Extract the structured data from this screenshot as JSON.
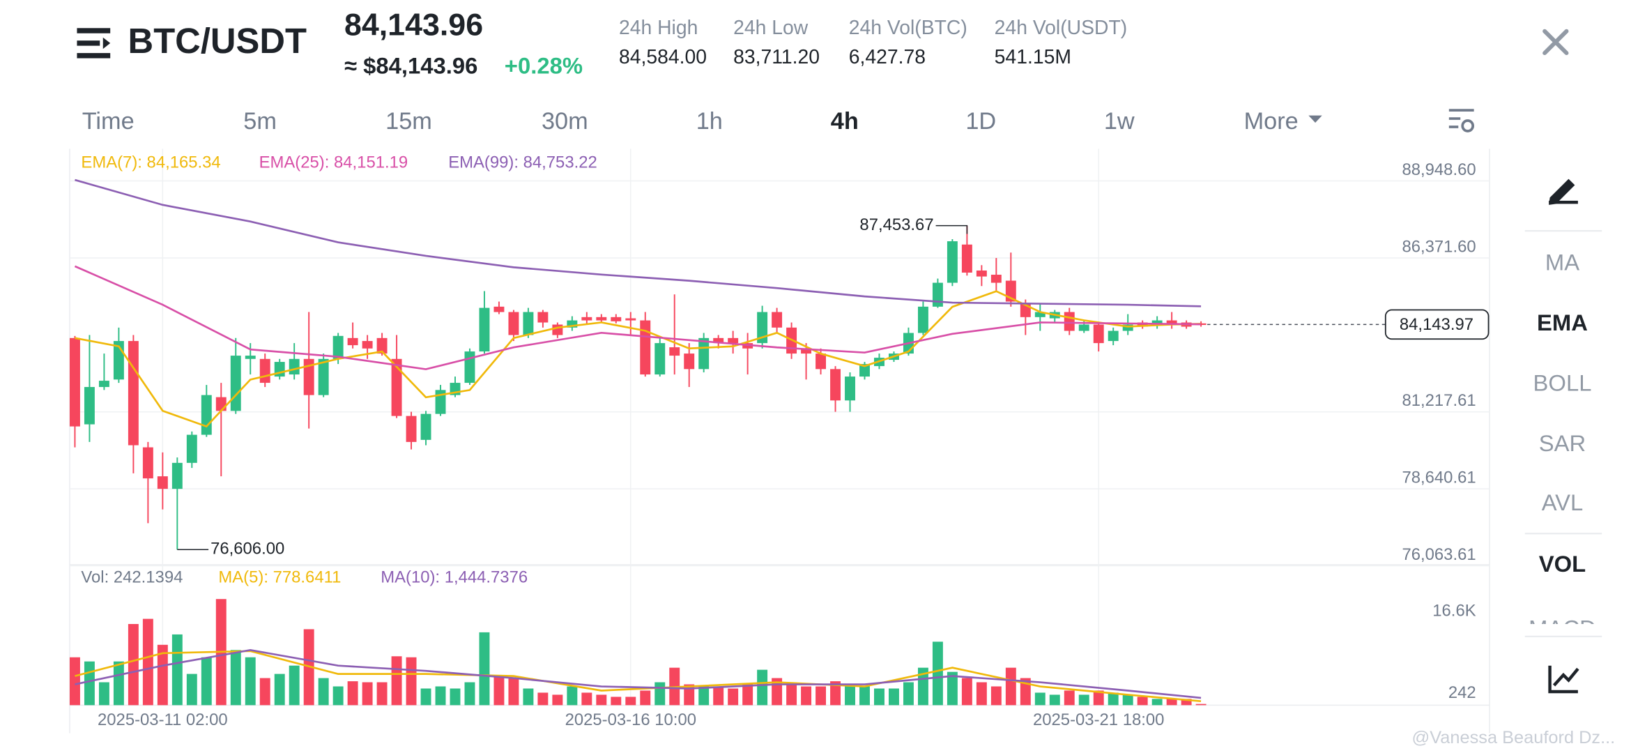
{
  "header": {
    "pair": "BTC/USDT",
    "price": "84,143.96",
    "usd_price": "≈ $84,143.96",
    "change": "+0.28%",
    "stats": [
      {
        "label": "24h High",
        "value": "84,584.00"
      },
      {
        "label": "24h Low",
        "value": "83,711.20"
      },
      {
        "label": "24h Vol(BTC)",
        "value": "6,427.78"
      },
      {
        "label": "24h Vol(USDT)",
        "value": "541.15M"
      }
    ]
  },
  "tabs": {
    "items": [
      "Time",
      "5m",
      "15m",
      "30m",
      "1h",
      "4h",
      "1D",
      "1w",
      "More"
    ],
    "active": "4h"
  },
  "side_menu": {
    "items": [
      "MA",
      "EMA",
      "BOLL",
      "SAR",
      "AVL",
      "VOL",
      "MACD"
    ],
    "active": [
      "EMA",
      "VOL"
    ]
  },
  "watermark": "@Vanessa Beauford Dz...",
  "chart_data": [
    {
      "type": "candlestick",
      "up_color": "#2ebd85",
      "down_color": "#f6465d",
      "open": [
        83690,
        80800,
        82050,
        82300,
        83590,
        80030,
        79060,
        78640,
        79510,
        80450,
        81710,
        81250,
        82990,
        82990,
        82400,
        82470,
        82990,
        81780,
        82990,
        83690,
        83590,
        83690,
        82990,
        81080,
        80280,
        81150,
        81780,
        82190,
        83240,
        84740,
        84560,
        83790,
        84560,
        84140,
        84040,
        84390,
        84390,
        84390,
        84350,
        84280,
        82470,
        83380,
        83170,
        82650,
        83690,
        83690,
        83520,
        83520,
        84560,
        84040,
        83340,
        83170,
        82650,
        81600,
        82400,
        82750,
        82960,
        83170,
        83860,
        84740,
        85540,
        86820,
        85950,
        85810,
        85610,
        84840,
        84390,
        84350,
        84560,
        83930,
        84140,
        83590,
        83930,
        84210,
        84140,
        84280,
        84210,
        84180
      ],
      "high": [
        83760,
        83790,
        83170,
        84040,
        83790,
        80210,
        79860,
        79690,
        80560,
        82120,
        82190,
        83690,
        83520,
        83170,
        82990,
        83520,
        84560,
        83170,
        83860,
        84210,
        83790,
        83860,
        83790,
        81220,
        81250,
        82120,
        82400,
        83340,
        85260,
        84910,
        84630,
        84700,
        84630,
        84210,
        84420,
        84560,
        84490,
        84490,
        84560,
        84560,
        83690,
        85150,
        83520,
        83860,
        83790,
        83930,
        83860,
        84770,
        84700,
        84210,
        83520,
        83340,
        82750,
        82540,
        82890,
        83170,
        83240,
        84040,
        84910,
        85680,
        87000,
        87453.67,
        86130,
        86370,
        86550,
        84980,
        84840,
        84630,
        84700,
        84280,
        84210,
        84040,
        84490,
        84280,
        84420,
        84560,
        84280,
        84250
      ],
      "low": [
        80030,
        80210,
        81950,
        82190,
        79160,
        77490,
        77950,
        76606,
        79340,
        80380,
        79060,
        81150,
        82470,
        82050,
        82300,
        82300,
        80660,
        81710,
        82820,
        83340,
        82990,
        83100,
        81010,
        79960,
        80100,
        81080,
        81710,
        82120,
        83170,
        84490,
        83590,
        83690,
        84040,
        83690,
        83930,
        84140,
        84210,
        84180,
        83790,
        82400,
        82400,
        82470,
        82050,
        82540,
        83340,
        83170,
        82470,
        83340,
        83860,
        82990,
        82300,
        82470,
        81220,
        81220,
        82300,
        82650,
        82890,
        83100,
        83790,
        84700,
        85430,
        85780,
        85430,
        85260,
        84740,
        83790,
        83930,
        84210,
        83790,
        83860,
        83240,
        83450,
        83790,
        84000,
        84000,
        84000,
        84000,
        84070
      ],
      "close": [
        80730,
        82050,
        82260,
        83590,
        80100,
        78990,
        78640,
        79510,
        80450,
        81780,
        81250,
        83100,
        83100,
        82190,
        82890,
        82990,
        81780,
        82990,
        83760,
        83450,
        83340,
        83170,
        81080,
        80210,
        81150,
        81950,
        82190,
        83240,
        84700,
        84560,
        83790,
        84560,
        84210,
        83790,
        84280,
        84280,
        84280,
        84250,
        84280,
        82470,
        83520,
        83100,
        82650,
        83690,
        83520,
        83520,
        83340,
        84560,
        84040,
        83170,
        83170,
        82650,
        81600,
        82400,
        82820,
        83030,
        83170,
        83860,
        84740,
        85540,
        86930,
        85880,
        85750,
        85540,
        84910,
        84390,
        84560,
        84560,
        83930,
        84140,
        83520,
        83930,
        84140,
        84070,
        84280,
        84140,
        84070,
        84143.96
      ],
      "series": [
        {
          "name": "EMA(7): 84,165.34",
          "color": "#f0b90b",
          "type": "line",
          "x": [
            0,
            3,
            6,
            9,
            12,
            15,
            18,
            21,
            24,
            27,
            30,
            33,
            36,
            39,
            42,
            45,
            48,
            51,
            54,
            57,
            60,
            63,
            66,
            69,
            72,
            75,
            77
          ],
          "values": [
            83690,
            83412,
            81253,
            80731,
            82298,
            82646,
            82994,
            83238,
            81706,
            81950,
            83690,
            84039,
            84213,
            83934,
            83342,
            83412,
            83865,
            83168,
            82750,
            83238,
            84735,
            85257,
            84561,
            84282,
            84074,
            84143,
            84165.34
          ]
        },
        {
          "name": "EMA(25): 84,151.19",
          "color": "#d84fa7",
          "type": "line",
          "x": [
            0,
            6,
            12,
            18,
            24,
            30,
            36,
            42,
            48,
            54,
            60,
            66,
            72,
            77
          ],
          "values": [
            86093,
            84805,
            83307,
            83064,
            82646,
            83377,
            83865,
            83621,
            83377,
            83203,
            83830,
            84213,
            84178,
            84151.19
          ]
        },
        {
          "name": "EMA(99): 84,753.22",
          "color": "#8c5fb3",
          "type": "line",
          "x": [
            0,
            6,
            12,
            18,
            24,
            30,
            36,
            42,
            48,
            54,
            60,
            66,
            72,
            77
          ],
          "values": [
            88983,
            88148,
            87590,
            86894,
            86441,
            86058,
            85815,
            85610,
            85362,
            85083,
            84874,
            84840,
            84805,
            84753.22
          ]
        }
      ],
      "ylim": [
        76063.61,
        90028.1
      ],
      "yticks": [
        {
          "value": 88948.6,
          "label": "88,948.60"
        },
        {
          "value": 86371.6,
          "label": "86,371.60"
        },
        {
          "value": 81217.61,
          "label": "81,217.61"
        },
        {
          "value": 78640.61,
          "label": "78,640.61"
        },
        {
          "value": 76063.61,
          "label": "76,063.61"
        }
      ],
      "grid": true,
      "last_price": {
        "value": 84143.97,
        "label": "84,143.97"
      },
      "high_label": {
        "value": 87453.67,
        "label": "87,453.67"
      },
      "low_label": {
        "value": 76606,
        "label": "76,606.00"
      }
    },
    {
      "type": "bar",
      "categories": [
        null,
        null,
        null,
        null,
        null,
        null,
        "2025-03-11 02:00",
        null,
        null,
        null,
        null,
        null,
        null,
        null,
        null,
        null,
        null,
        null,
        null,
        null,
        null,
        null,
        null,
        null,
        null,
        null,
        null,
        null,
        null,
        null,
        null,
        null,
        null,
        null,
        null,
        null,
        null,
        null,
        "2025-03-16 10:00",
        null,
        null,
        null,
        null,
        null,
        null,
        null,
        null,
        null,
        null,
        null,
        null,
        null,
        null,
        null,
        null,
        null,
        null,
        null,
        null,
        null,
        null,
        null,
        null,
        null,
        null,
        null,
        null,
        null,
        null,
        null,
        "2025-03-21 18:00",
        null,
        null,
        null,
        null,
        null,
        null,
        null
      ],
      "series": [
        {
          "name": "Vol: 242.1394",
          "type": "bar",
          "values": [
            9550,
            8720,
            4570,
            8720,
            16190,
            17220,
            12040,
            14110,
            6230,
            9550,
            21170,
            11000,
            9550,
            5400,
            6230,
            7890,
            15150,
            5400,
            3740,
            4770,
            4570,
            4570,
            9750,
            9550,
            3320,
            3740,
            3320,
            4570,
            14530,
            5810,
            5400,
            3320,
            2490,
            2080,
            3740,
            2490,
            2080,
            1660,
            1660,
            2910,
            4570,
            7470,
            4150,
            3740,
            3740,
            3320,
            4150,
            7060,
            5400,
            4150,
            3740,
            3740,
            4770,
            3740,
            3740,
            3320,
            3320,
            4570,
            7470,
            12660,
            6640,
            5400,
            4570,
            3740,
            7470,
            5400,
            2490,
            2080,
            2910,
            2080,
            2910,
            2490,
            2080,
            1660,
            1250,
            1250,
            1250,
            242.1394
          ]
        },
        {
          "name": "MA(5): 778.6411",
          "color": "#f0b90b",
          "type": "line",
          "x": [
            0,
            6,
            12,
            18,
            24,
            30,
            36,
            42,
            48,
            54,
            60,
            66,
            72,
            77
          ],
          "values": [
            5810,
            10380,
            10790,
            6230,
            6230,
            5810,
            2910,
            3740,
            4570,
            3740,
            7470,
            3740,
            2080,
            778.6411
          ]
        },
        {
          "name": "MA(10): 1,444.7376",
          "color": "#8c5fb3",
          "type": "line",
          "x": [
            0,
            6,
            12,
            18,
            24,
            30,
            36,
            42,
            48,
            54,
            60,
            66,
            72,
            77
          ],
          "values": [
            4150,
            7890,
            11000,
            7890,
            6850,
            5400,
            3740,
            3320,
            4150,
            4150,
            5810,
            4570,
            2910,
            1444.7376
          ]
        }
      ],
      "ylim": [
        0,
        28010
      ],
      "yticks": [
        {
          "value": 16600,
          "label": "16.6K"
        },
        242
      ],
      "grid": false
    }
  ]
}
